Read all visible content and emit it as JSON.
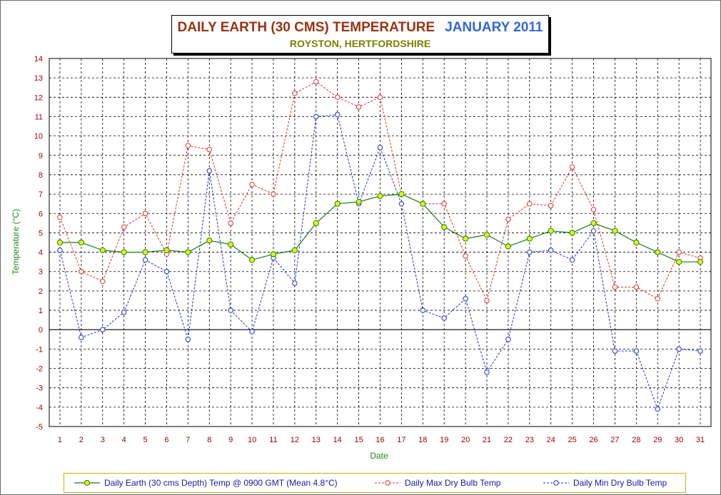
{
  "title": {
    "main": "DAILY EARTH (30 CMS) TEMPERATURE",
    "date": "JANUARY 2011",
    "subtitle": "ROYSTON, HERTFORDSHIRE"
  },
  "colors": {
    "earth_line": "#1a7a1a",
    "earth_marker": "#e8ff00",
    "max_line": "#e03030",
    "min_line": "#2030d0",
    "axis_text": "#990000",
    "axis_title": "#1a8a1a",
    "grid": "#000000"
  },
  "chart_data": {
    "type": "line",
    "xlabel": "Date",
    "ylabel": "Temperature (°C)",
    "ylim": [
      -5,
      14
    ],
    "grid": true,
    "legend_position": "bottom",
    "categories": [
      "1",
      "2",
      "3",
      "4",
      "5",
      "6",
      "7",
      "8",
      "9",
      "10",
      "11",
      "12",
      "13",
      "14",
      "15",
      "16",
      "17",
      "18",
      "19",
      "20",
      "21",
      "22",
      "23",
      "24",
      "25",
      "26",
      "27",
      "28",
      "29",
      "30",
      "31"
    ],
    "series": [
      {
        "name": "Daily Earth (30 cms Depth) Temp @ 0900 GMT (Mean 4.8°C)",
        "values": [
          4.5,
          4.5,
          4.1,
          4.0,
          4.0,
          4.1,
          4.0,
          4.6,
          4.4,
          3.6,
          3.9,
          4.1,
          5.5,
          6.5,
          6.6,
          6.9,
          7.0,
          6.5,
          5.3,
          4.7,
          4.9,
          4.3,
          4.7,
          5.1,
          5.0,
          5.5,
          5.1,
          4.5,
          4.0,
          3.5,
          3.5
        ]
      },
      {
        "name": "Daily Max Dry Bulb Temp",
        "values": [
          5.8,
          3.0,
          2.5,
          5.3,
          6.0,
          3.9,
          9.5,
          9.3,
          5.5,
          7.5,
          7.0,
          12.2,
          12.8,
          12.0,
          11.5,
          12.0,
          7.0,
          6.5,
          6.5,
          3.8,
          1.5,
          5.7,
          6.5,
          6.4,
          8.4,
          6.2,
          2.2,
          2.2,
          1.6,
          4.0,
          3.7
        ]
      },
      {
        "name": "Daily Min Dry Bulb Temp",
        "values": [
          4.1,
          -0.4,
          0.0,
          0.9,
          3.6,
          3.0,
          -0.5,
          8.2,
          1.0,
          -0.1,
          3.7,
          2.4,
          11.0,
          11.1,
          6.5,
          9.4,
          6.5,
          1.0,
          0.6,
          1.6,
          -2.2,
          -0.5,
          4.0,
          4.1,
          3.6,
          5.1,
          -1.1,
          -1.1,
          -4.1,
          -1.0,
          -1.1
        ]
      }
    ]
  }
}
